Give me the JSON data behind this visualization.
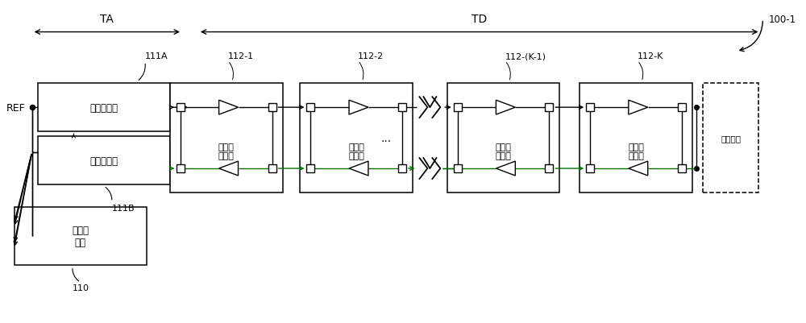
{
  "bg_color": "#ffffff",
  "fig_width": 10.0,
  "fig_height": 4.02,
  "title": "100-1",
  "ta_label": "TA",
  "td_label": "TD",
  "ref_label": "REF",
  "box_111A_label": "模拟延迟线",
  "box_111B_label": "模拟延迟线",
  "box_110_label": "相位检\n测器",
  "label_111A": "111A",
  "label_111B": "111B",
  "label_110": "110",
  "label_phys": "物理电路",
  "clk_label": "时钒缓\n冲器对",
  "clk_ids": [
    "112-1",
    "112-2",
    "112-(K-1)",
    "112-K"
  ],
  "line_color": "#000000",
  "green_line": "#007000"
}
